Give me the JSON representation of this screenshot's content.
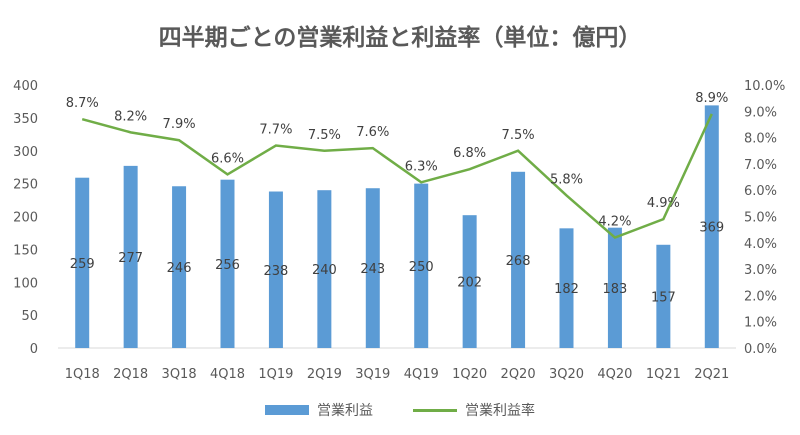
{
  "chart_data": {
    "type": "bar+line",
    "title": "四半期ごとの営業利益と利益率（単位：億円）",
    "categories": [
      "1Q18",
      "2Q18",
      "3Q18",
      "4Q18",
      "1Q19",
      "2Q19",
      "3Q19",
      "4Q19",
      "1Q20",
      "2Q20",
      "3Q20",
      "4Q20",
      "1Q21",
      "2Q21"
    ],
    "series": [
      {
        "name": "営業利益",
        "type": "bar",
        "axis": "left",
        "color": "#5b9bd5",
        "values": [
          259,
          277,
          246,
          256,
          238,
          240,
          243,
          250,
          202,
          268,
          182,
          183,
          157,
          369
        ]
      },
      {
        "name": "営業利益率",
        "type": "line",
        "axis": "right",
        "color": "#70ad47",
        "values": [
          8.7,
          8.2,
          7.9,
          6.6,
          7.7,
          7.5,
          7.6,
          6.3,
          6.8,
          7.5,
          5.8,
          4.2,
          4.9,
          8.9
        ]
      }
    ],
    "ylim": [
      0,
      400
    ],
    "yticks": [
      0,
      50,
      100,
      150,
      200,
      250,
      300,
      350,
      400
    ],
    "y2lim": [
      0,
      10
    ],
    "y2ticks": [
      "0.0%",
      "1.0%",
      "2.0%",
      "3.0%",
      "4.0%",
      "5.0%",
      "6.0%",
      "7.0%",
      "8.0%",
      "9.0%",
      "10.0%"
    ],
    "grid": false,
    "legend": "bottom"
  }
}
